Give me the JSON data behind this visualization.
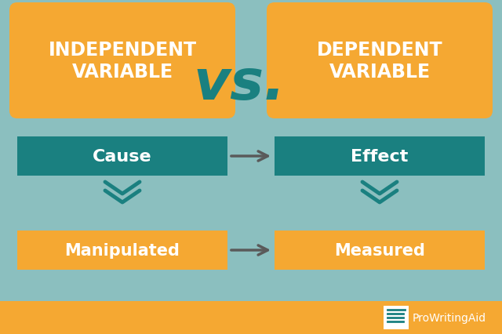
{
  "bg_color": "#8BBFBF",
  "orange_color": "#F5A832",
  "teal_color": "#1A8080",
  "gray_arrow_color": "#5A5A5A",
  "footer_color": "#F5A832",
  "white": "#FFFFFF",
  "vs_color": "#1A8080",
  "title_left": "INDEPENDENT\nVARIABLE",
  "title_right": "DEPENDENT\nVARIABLE",
  "vs_text": "vs.",
  "cause_text": "Cause",
  "effect_text": "Effect",
  "manipulated_text": "Manipulated",
  "measured_text": "Measured",
  "brand_text": "ProWritingAid",
  "fig_width": 6.4,
  "fig_height": 4.27,
  "dpi": 100
}
